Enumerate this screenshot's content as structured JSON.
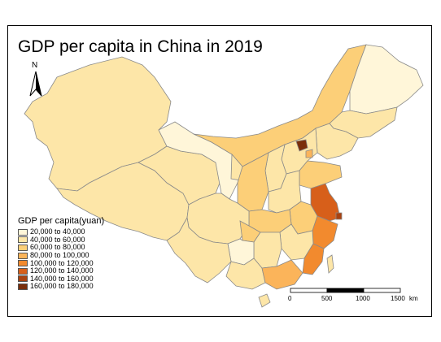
{
  "map": {
    "title": "GDP per capita in China in 2019",
    "north_label": "N",
    "legend": {
      "title": "GDP per capita(yuan)",
      "items": [
        {
          "label": "20,000 to 40,000",
          "color": "#fff6d9"
        },
        {
          "label": "40,000 to 60,000",
          "color": "#fde6a8"
        },
        {
          "label": "60,000 to 80,000",
          "color": "#fccf78"
        },
        {
          "label": "80,000 to 100,000",
          "color": "#fbb45a"
        },
        {
          "label": "100,000 to 120,000",
          "color": "#f28a2e"
        },
        {
          "label": "120,000 to 140,000",
          "color": "#d75f1a"
        },
        {
          "label": "140,000 to 160,000",
          "color": "#a94210"
        },
        {
          "label": "160,000 to 180,000",
          "color": "#7a2e0b"
        }
      ]
    },
    "scale_bar": {
      "labels": [
        "0",
        "500",
        "1000",
        "1500"
      ],
      "unit": "km"
    }
  }
}
